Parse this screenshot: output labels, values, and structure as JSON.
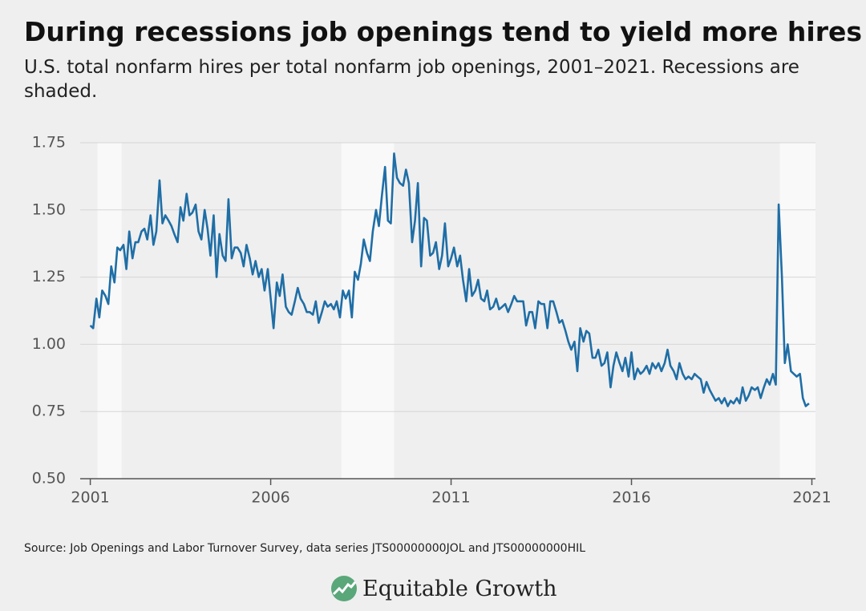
{
  "chart_data": {
    "type": "line",
    "title": "During recessions job openings tend to yield more hires",
    "subtitle": "U.S. total nonfarm hires per total nonfarm job openings, 2001–2021. Recessions are shaded.",
    "source": "Source: Job Openings and Labor Turnover Survey, data series JTS00000000JOL and JTS00000000HIL",
    "brand": "Equitable Growth",
    "xlim": [
      2000.72,
      2021.1
    ],
    "xticks": [
      2001,
      2006,
      2011,
      2016,
      2021
    ],
    "ylim": [
      0.5,
      1.75
    ],
    "yticks": [
      {
        "value": 0.5,
        "label": "0.50"
      },
      {
        "value": 0.75,
        "label": "0.75"
      },
      {
        "value": 1.0,
        "label": "1.00"
      },
      {
        "value": 1.25,
        "label": "1.25"
      },
      {
        "value": 1.5,
        "label": "1.50"
      },
      {
        "value": 1.75,
        "label": "1.75"
      }
    ],
    "grid": true,
    "color": "#1f6ea6",
    "recessions": [
      [
        2001.2,
        2001.87
      ],
      [
        2007.96,
        2009.42
      ],
      [
        2020.11,
        2021.1
      ]
    ],
    "x": [
      2001.0,
      2001.08,
      2001.17,
      2001.25,
      2001.33,
      2001.42,
      2001.5,
      2001.58,
      2001.67,
      2001.75,
      2001.83,
      2001.92,
      2002.0,
      2002.08,
      2002.17,
      2002.25,
      2002.33,
      2002.42,
      2002.5,
      2002.58,
      2002.67,
      2002.75,
      2002.83,
      2002.92,
      2003.0,
      2003.08,
      2003.17,
      2003.25,
      2003.33,
      2003.42,
      2003.5,
      2003.58,
      2003.67,
      2003.75,
      2003.83,
      2003.92,
      2004.0,
      2004.08,
      2004.17,
      2004.25,
      2004.33,
      2004.42,
      2004.5,
      2004.58,
      2004.67,
      2004.75,
      2004.83,
      2004.92,
      2005.0,
      2005.08,
      2005.17,
      2005.25,
      2005.33,
      2005.42,
      2005.5,
      2005.58,
      2005.67,
      2005.75,
      2005.83,
      2005.92,
      2006.0,
      2006.08,
      2006.17,
      2006.25,
      2006.33,
      2006.42,
      2006.5,
      2006.58,
      2006.67,
      2006.75,
      2006.83,
      2006.92,
      2007.0,
      2007.08,
      2007.17,
      2007.25,
      2007.33,
      2007.42,
      2007.5,
      2007.58,
      2007.67,
      2007.75,
      2007.83,
      2007.92,
      2008.0,
      2008.08,
      2008.17,
      2008.25,
      2008.33,
      2008.42,
      2008.5,
      2008.58,
      2008.67,
      2008.75,
      2008.83,
      2008.92,
      2009.0,
      2009.08,
      2009.17,
      2009.25,
      2009.33,
      2009.42,
      2009.5,
      2009.58,
      2009.67,
      2009.75,
      2009.83,
      2009.92,
      2010.0,
      2010.08,
      2010.17,
      2010.25,
      2010.33,
      2010.42,
      2010.5,
      2010.58,
      2010.67,
      2010.75,
      2010.83,
      2010.92,
      2011.0,
      2011.08,
      2011.17,
      2011.25,
      2011.33,
      2011.42,
      2011.5,
      2011.58,
      2011.67,
      2011.75,
      2011.83,
      2011.92,
      2012.0,
      2012.08,
      2012.17,
      2012.25,
      2012.33,
      2012.42,
      2012.5,
      2012.58,
      2012.67,
      2012.75,
      2012.83,
      2012.92,
      2013.0,
      2013.08,
      2013.17,
      2013.25,
      2013.33,
      2013.42,
      2013.5,
      2013.58,
      2013.67,
      2013.75,
      2013.83,
      2013.92,
      2014.0,
      2014.08,
      2014.17,
      2014.25,
      2014.33,
      2014.42,
      2014.5,
      2014.58,
      2014.67,
      2014.75,
      2014.83,
      2014.92,
      2015.0,
      2015.08,
      2015.17,
      2015.25,
      2015.33,
      2015.42,
      2015.5,
      2015.58,
      2015.67,
      2015.75,
      2015.83,
      2015.92,
      2016.0,
      2016.08,
      2016.17,
      2016.25,
      2016.33,
      2016.42,
      2016.5,
      2016.58,
      2016.67,
      2016.75,
      2016.83,
      2016.92,
      2017.0,
      2017.08,
      2017.17,
      2017.25,
      2017.33,
      2017.42,
      2017.5,
      2017.58,
      2017.67,
      2017.75,
      2017.83,
      2017.92,
      2018.0,
      2018.08,
      2018.17,
      2018.25,
      2018.33,
      2018.42,
      2018.5,
      2018.58,
      2018.67,
      2018.75,
      2018.83,
      2018.92,
      2019.0,
      2019.08,
      2019.17,
      2019.25,
      2019.33,
      2019.42,
      2019.5,
      2019.58,
      2019.67,
      2019.75,
      2019.83,
      2019.92,
      2020.0,
      2020.08,
      2020.17,
      2020.25,
      2020.33,
      2020.42,
      2020.5,
      2020.58,
      2020.67,
      2020.75,
      2020.83,
      2020.92
    ],
    "values": [
      1.07,
      1.06,
      1.17,
      1.1,
      1.2,
      1.18,
      1.15,
      1.29,
      1.23,
      1.36,
      1.35,
      1.37,
      1.28,
      1.42,
      1.32,
      1.38,
      1.38,
      1.42,
      1.43,
      1.39,
      1.48,
      1.37,
      1.42,
      1.61,
      1.45,
      1.48,
      1.46,
      1.44,
      1.41,
      1.38,
      1.51,
      1.46,
      1.56,
      1.48,
      1.49,
      1.52,
      1.42,
      1.39,
      1.5,
      1.43,
      1.33,
      1.48,
      1.25,
      1.41,
      1.33,
      1.31,
      1.54,
      1.32,
      1.36,
      1.36,
      1.34,
      1.29,
      1.37,
      1.32,
      1.26,
      1.31,
      1.25,
      1.28,
      1.2,
      1.28,
      1.17,
      1.06,
      1.23,
      1.18,
      1.26,
      1.14,
      1.12,
      1.11,
      1.16,
      1.21,
      1.17,
      1.15,
      1.12,
      1.12,
      1.11,
      1.16,
      1.08,
      1.12,
      1.16,
      1.14,
      1.15,
      1.13,
      1.16,
      1.1,
      1.2,
      1.17,
      1.2,
      1.1,
      1.27,
      1.24,
      1.3,
      1.39,
      1.34,
      1.31,
      1.42,
      1.5,
      1.44,
      1.55,
      1.66,
      1.46,
      1.45,
      1.71,
      1.62,
      1.6,
      1.59,
      1.65,
      1.6,
      1.38,
      1.46,
      1.6,
      1.29,
      1.47,
      1.46,
      1.33,
      1.34,
      1.38,
      1.28,
      1.33,
      1.45,
      1.29,
      1.32,
      1.36,
      1.29,
      1.33,
      1.24,
      1.16,
      1.28,
      1.18,
      1.2,
      1.24,
      1.17,
      1.16,
      1.2,
      1.13,
      1.14,
      1.17,
      1.13,
      1.14,
      1.15,
      1.12,
      1.15,
      1.18,
      1.16,
      1.16,
      1.16,
      1.07,
      1.12,
      1.12,
      1.06,
      1.16,
      1.15,
      1.15,
      1.06,
      1.16,
      1.16,
      1.12,
      1.08,
      1.09,
      1.05,
      1.01,
      0.98,
      1.01,
      0.9,
      1.06,
      1.01,
      1.05,
      1.04,
      0.95,
      0.95,
      0.98,
      0.92,
      0.93,
      0.97,
      0.84,
      0.92,
      0.97,
      0.93,
      0.9,
      0.95,
      0.88,
      0.97,
      0.87,
      0.91,
      0.89,
      0.9,
      0.92,
      0.89,
      0.93,
      0.91,
      0.93,
      0.9,
      0.93,
      0.98,
      0.92,
      0.9,
      0.87,
      0.93,
      0.89,
      0.87,
      0.88,
      0.87,
      0.89,
      0.88,
      0.87,
      0.82,
      0.86,
      0.83,
      0.81,
      0.79,
      0.8,
      0.78,
      0.8,
      0.77,
      0.79,
      0.78,
      0.8,
      0.78,
      0.84,
      0.79,
      0.81,
      0.84,
      0.83,
      0.84,
      0.8,
      0.84,
      0.87,
      0.85,
      0.89,
      0.85,
      1.52,
      1.25,
      0.93,
      1.0,
      0.9,
      0.89,
      0.88,
      0.89,
      0.8,
      0.77,
      0.78
    ]
  }
}
